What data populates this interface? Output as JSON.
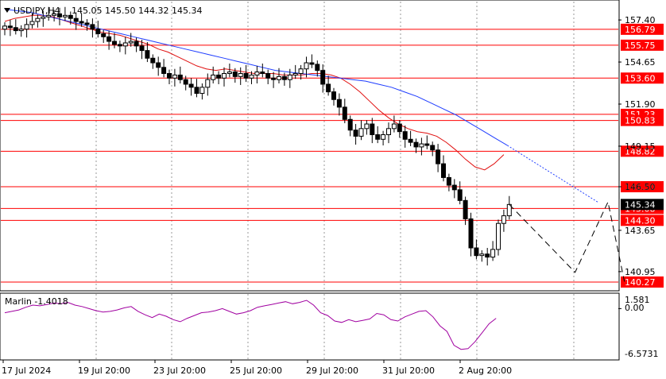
{
  "header": {
    "symbol": "USDJPY,H4",
    "ohlc": "145.05 145.50 144.32 145.34"
  },
  "indicator": {
    "label": "Marlin -1.4018",
    "max_label": "1.581",
    "zero_label": "0.00",
    "min_label": "-6.5731",
    "line_color": "#a000a0"
  },
  "colors": {
    "level": "#ff0000",
    "ma_fast": "#e01010",
    "ma_slow": "#1e3cff",
    "candle": "#000000"
  },
  "chart_data": {
    "type": "candlestick",
    "price_ticks": [
      157.4,
      154.65,
      151.9,
      149.15,
      146.5,
      143.65,
      140.95
    ],
    "price_tick_labels": [
      "157.40",
      "154.65",
      "151.90",
      "149.15",
      "146.50",
      "143.65",
      "140.95"
    ],
    "ylim": [
      139.8,
      158.6
    ],
    "levels": [
      {
        "value": 156.79,
        "label": "156.79"
      },
      {
        "value": 155.75,
        "label": "155.75"
      },
      {
        "value": 153.6,
        "label": "153.60"
      },
      {
        "value": 151.23,
        "label": "151.23"
      },
      {
        "value": 150.83,
        "label": "150.83"
      },
      {
        "value": 148.82,
        "label": "148.82"
      },
      {
        "value": 146.5,
        "label": "146.50"
      },
      {
        "value": 145.08,
        "label": "145.08"
      },
      {
        "value": 144.3,
        "label": "144.30"
      },
      {
        "value": 140.27,
        "label": "140.27"
      }
    ],
    "current_price": {
      "value": 145.34,
      "label": "145.34"
    },
    "time_labels": [
      "17 Jul 2024",
      "19 Jul 20:00",
      "23 Jul 20:00",
      "25 Jul 20:00",
      "29 Jul 20:00",
      "31 Jul 20:00",
      "2 Aug 20:00"
    ],
    "closes": [
      157.0,
      156.9,
      156.7,
      156.8,
      157.1,
      157.3,
      157.5,
      157.6,
      157.7,
      157.8,
      157.6,
      157.7,
      157.5,
      157.3,
      157.2,
      157.1,
      156.8,
      156.5,
      156.3,
      156.0,
      155.8,
      155.7,
      155.9,
      156.0,
      155.7,
      155.4,
      154.9,
      154.6,
      154.3,
      153.9,
      153.6,
      153.8,
      153.5,
      153.2,
      153.0,
      152.6,
      153.0,
      153.5,
      153.8,
      153.6,
      153.9,
      154.0,
      153.7,
      153.9,
      153.6,
      153.8,
      154.0,
      153.9,
      153.6,
      153.5,
      153.7,
      153.5,
      153.8,
      153.9,
      154.2,
      154.6,
      154.5,
      154.1,
      153.2,
      152.7,
      152.2,
      151.7,
      150.9,
      150.2,
      149.8,
      150.3,
      150.6,
      149.9,
      149.6,
      149.9,
      150.3,
      150.6,
      150.1,
      149.6,
      149.4,
      149.1,
      149.3,
      149.2,
      148.9,
      148.0,
      147.1,
      146.6,
      146.3,
      145.6,
      144.4,
      142.5,
      142.0,
      142.1,
      141.9,
      142.4,
      144.1,
      144.6,
      145.34
    ],
    "ma_fast": [
      157.3,
      157.5,
      157.6,
      157.7,
      157.7,
      157.6,
      157.4,
      157.2,
      157.0,
      156.8,
      156.6,
      156.5,
      156.4,
      156.2,
      156.0,
      155.8,
      155.5,
      155.3,
      155.0,
      154.7,
      154.4,
      154.2,
      154.1,
      154.2,
      154.1,
      154.0,
      153.9,
      153.9,
      153.9,
      153.8,
      153.8,
      153.8,
      153.9,
      153.9,
      153.8,
      153.6,
      153.2,
      152.7,
      152.1,
      151.5,
      151.0,
      150.6,
      150.3,
      150.1,
      150.0,
      149.8,
      149.4,
      148.9,
      148.3,
      147.8,
      147.6,
      148.0,
      148.6
    ],
    "ma_slow": [
      158.1,
      158.0,
      157.9,
      157.7,
      157.5,
      157.3,
      157.1,
      156.9,
      156.7,
      156.5,
      156.3,
      156.1,
      155.9,
      155.7,
      155.5,
      155.3,
      155.1,
      154.9,
      154.7,
      154.5,
      154.3,
      154.1,
      154.0,
      153.9,
      153.8,
      153.7,
      153.6,
      153.5,
      153.4,
      153.2,
      153.0,
      152.7,
      152.4,
      152.0,
      151.6,
      151.2,
      150.7,
      150.2,
      149.7,
      149.2
    ],
    "projection": {
      "points": [
        [
          145.34,
          0
        ],
        [
          140.9,
          12
        ],
        [
          145.5,
          18
        ],
        [
          140.3,
          21
        ]
      ]
    },
    "indicator_values": [
      -0.6,
      -0.4,
      -0.2,
      0.2,
      0.5,
      0.4,
      0.6,
      0.8,
      0.7,
      0.9,
      0.5,
      0.3,
      0.0,
      -0.3,
      -0.5,
      -0.4,
      -0.2,
      0.1,
      0.3,
      -0.4,
      -0.9,
      -1.3,
      -0.8,
      -1.1,
      -1.6,
      -1.9,
      -1.4,
      -1.0,
      -0.6,
      -0.5,
      -0.3,
      0.0,
      -0.4,
      -0.8,
      -0.6,
      -0.3,
      0.2,
      0.4,
      0.6,
      0.8,
      1.0,
      0.7,
      0.9,
      1.2,
      0.5,
      -0.6,
      -1.0,
      -1.8,
      -2.0,
      -1.6,
      -1.9,
      -1.7,
      -1.5,
      -0.7,
      -0.9,
      -1.6,
      -1.8,
      -1.2,
      -0.8,
      -0.4,
      -0.3,
      -1.2,
      -2.5,
      -3.3,
      -5.3,
      -5.9,
      -5.8,
      -4.8,
      -3.5,
      -2.2,
      -1.4
    ],
    "indicator_ylim": [
      -7.2,
      2.0
    ]
  }
}
